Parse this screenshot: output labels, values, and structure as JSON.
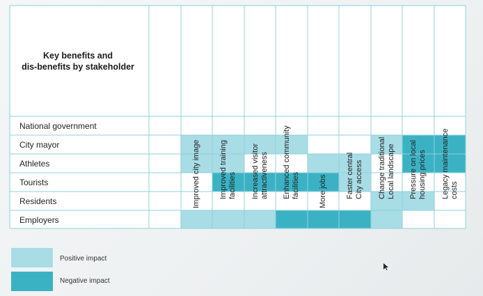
{
  "title_lines": [
    "Key benefits and",
    "dis-benefits by stakeholder"
  ],
  "columns": [
    {
      "lines": [
        "Improved city image"
      ]
    },
    {
      "lines": [
        "Improved training",
        "facilities"
      ]
    },
    {
      "lines": [
        "Increased visitor",
        "attractiveness"
      ]
    },
    {
      "lines": [
        "Enhanced community",
        "facilities"
      ]
    },
    {
      "lines": [
        "More jobs"
      ]
    },
    {
      "lines": [
        "Faster central",
        "City access"
      ]
    },
    {
      "lines": [
        "Change traditional",
        "Local landscape"
      ]
    },
    {
      "lines": [
        "Pressure on local",
        "housing prices"
      ]
    },
    {
      "lines": [
        "Legacy maintenance",
        "costs"
      ]
    }
  ],
  "rows": [
    {
      "label": "National government",
      "cells": [
        0,
        0,
        0,
        0,
        0,
        0,
        0,
        0,
        0
      ]
    },
    {
      "label": "City mayor",
      "cells": [
        1,
        1,
        1,
        1,
        0,
        0,
        1,
        2,
        2
      ]
    },
    {
      "label": "Athletes",
      "cells": [
        1,
        1,
        0,
        0,
        1,
        1,
        0,
        2,
        2
      ]
    },
    {
      "label": "Tourists",
      "cells": [
        0,
        2,
        2,
        2,
        2,
        1,
        0,
        0,
        0
      ]
    },
    {
      "label": "Residents",
      "cells": [
        0,
        0,
        0,
        0,
        0,
        0,
        1,
        1,
        0
      ]
    },
    {
      "label": "Employers",
      "cells": [
        1,
        1,
        1,
        2,
        2,
        2,
        1,
        0,
        0
      ]
    }
  ],
  "legend": [
    {
      "label": "Positive impact",
      "color": "#a8dde6"
    },
    {
      "label": "Negative impact",
      "color": "#3bb2c4"
    }
  ],
  "colors": {
    "none": "#ffffff",
    "positive": "#a8dde6",
    "negative": "#3bb2c4",
    "grid": "#8fd0dc"
  }
}
